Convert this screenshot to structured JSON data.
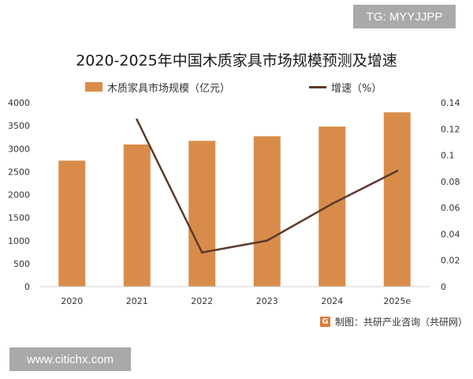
{
  "tag_badge": "TG: MYYJJPP",
  "url_badge": "www.citichx.com",
  "source": "制图：共研产业咨询（共研网）",
  "colors": {
    "bar": "#d98c4a",
    "line": "#5b3a2c",
    "badge": "#a9a9a9"
  },
  "chart_data": {
    "type": "bar",
    "title": "2020-2025年中国木质家具市场规模预测及增速",
    "categories": [
      "2020",
      "2021",
      "2022",
      "2023",
      "2024",
      "2025e"
    ],
    "series": [
      {
        "name": "木质家具市场规模（亿元）",
        "type": "bar",
        "axis": "left",
        "values": [
          2740,
          3090,
          3170,
          3270,
          3480,
          3790
        ]
      },
      {
        "name": "增速（%）",
        "type": "line",
        "axis": "right",
        "values": [
          null,
          0.127,
          0.026,
          0.035,
          0.063,
          0.088
        ]
      }
    ],
    "ylim_left": [
      0,
      4000
    ],
    "yticks_left": [
      "0",
      "500",
      "1000",
      "1500",
      "2000",
      "2500",
      "3000",
      "3500",
      "4000"
    ],
    "ylim_right": [
      0,
      0.14
    ],
    "yticks_right": [
      "0",
      "0.02",
      "0.04",
      "0.06",
      "0.08",
      "0.1",
      "0.12",
      "0.14"
    ],
    "legend_position": "top",
    "grid": false
  }
}
